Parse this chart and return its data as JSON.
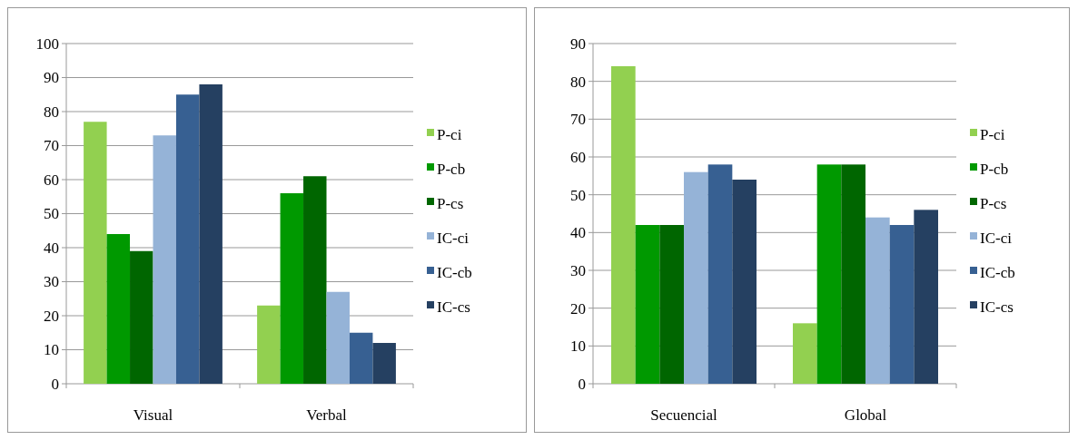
{
  "chart_data": [
    {
      "type": "bar",
      "categories": [
        "Visual",
        "Verbal"
      ],
      "ylim": [
        0,
        100
      ],
      "yticks": [
        0,
        10,
        20,
        30,
        40,
        50,
        60,
        70,
        80,
        90,
        100
      ],
      "grid": "y",
      "legend": "right",
      "series": [
        {
          "name": "P-ci",
          "color": "#92d050",
          "values": [
            77,
            23
          ]
        },
        {
          "name": "P-cb",
          "color": "#009900",
          "values": [
            44,
            56
          ]
        },
        {
          "name": "P-cs",
          "color": "#006600",
          "values": [
            39,
            61
          ]
        },
        {
          "name": "IC-ci",
          "color": "#95b3d7",
          "values": [
            73,
            27
          ]
        },
        {
          "name": "IC-cb",
          "color": "#376092",
          "values": [
            85,
            15
          ]
        },
        {
          "name": "IC-cs",
          "color": "#254061",
          "values": [
            88,
            12
          ]
        }
      ]
    },
    {
      "type": "bar",
      "categories": [
        "Secuencial",
        "Global"
      ],
      "ylim": [
        0,
        90
      ],
      "yticks": [
        0,
        10,
        20,
        30,
        40,
        50,
        60,
        70,
        80,
        90
      ],
      "grid": "y",
      "legend": "right",
      "series": [
        {
          "name": "P-ci",
          "color": "#92d050",
          "values": [
            84,
            16
          ]
        },
        {
          "name": "P-cb",
          "color": "#009900",
          "values": [
            42,
            58
          ]
        },
        {
          "name": "P-cs",
          "color": "#006600",
          "values": [
            42,
            58
          ]
        },
        {
          "name": "IC-ci",
          "color": "#95b3d7",
          "values": [
            56,
            44
          ]
        },
        {
          "name": "IC-cb",
          "color": "#376092",
          "values": [
            58,
            42
          ]
        },
        {
          "name": "IC-cs",
          "color": "#254061",
          "values": [
            54,
            46
          ]
        }
      ]
    }
  ]
}
